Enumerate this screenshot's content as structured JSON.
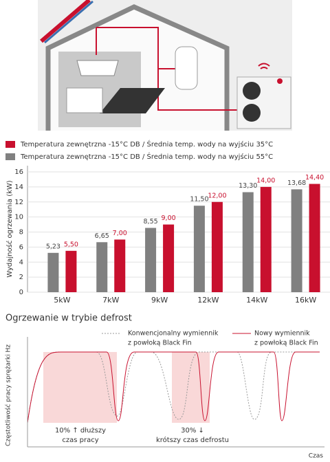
{
  "chart_data": {
    "type": "bar",
    "categories": [
      "5kW",
      "7kW",
      "9kW",
      "12kW",
      "14kW",
      "16kW"
    ],
    "series": [
      {
        "name": "Temperatura zewnętrzna -15°C DB / Średnia temp. wody na wyjściu 35°C",
        "color": "#c8102e",
        "values": [
          5.5,
          7.0,
          9.0,
          12.0,
          14.0,
          14.4
        ],
        "value_labels": [
          "5,50",
          "7,00",
          "9,00",
          "12,00",
          "14,00",
          "14,40"
        ]
      },
      {
        "name": "Temperatura zewnętrzna -15°C DB / Średnia temp. wody na wyjściu 55°C",
        "color": "#808080",
        "values": [
          5.23,
          6.65,
          8.55,
          11.5,
          13.3,
          13.68
        ],
        "value_labels": [
          "5,23",
          "6,65",
          "8,55",
          "11,50",
          "13,30",
          "13,68"
        ]
      }
    ],
    "ylabel": "Wydajność ogrzewania (kW)",
    "ylim": [
      0,
      16
    ],
    "yticks": [
      0,
      2,
      4,
      6,
      8,
      10,
      12,
      14,
      16
    ],
    "grid": true
  },
  "defrost": {
    "title": "Ogrzewanie w trybie defrost",
    "legend": [
      {
        "line1": "Konwencjonalny wymiennik",
        "line2": "z powłoką Black Fin"
      },
      {
        "line1": "Nowy wymiennik",
        "line2": "z powłoką Black Fin"
      }
    ],
    "ylabel": "Częstotliwość pracy sprężarki Hz",
    "xlabel": "Czas",
    "note1": {
      "line1": "10% ↑ dłuższy",
      "line2": "czas pracy"
    },
    "note2": {
      "line1": "30% ↓",
      "line2": "krótszy czas defrostu"
    }
  }
}
